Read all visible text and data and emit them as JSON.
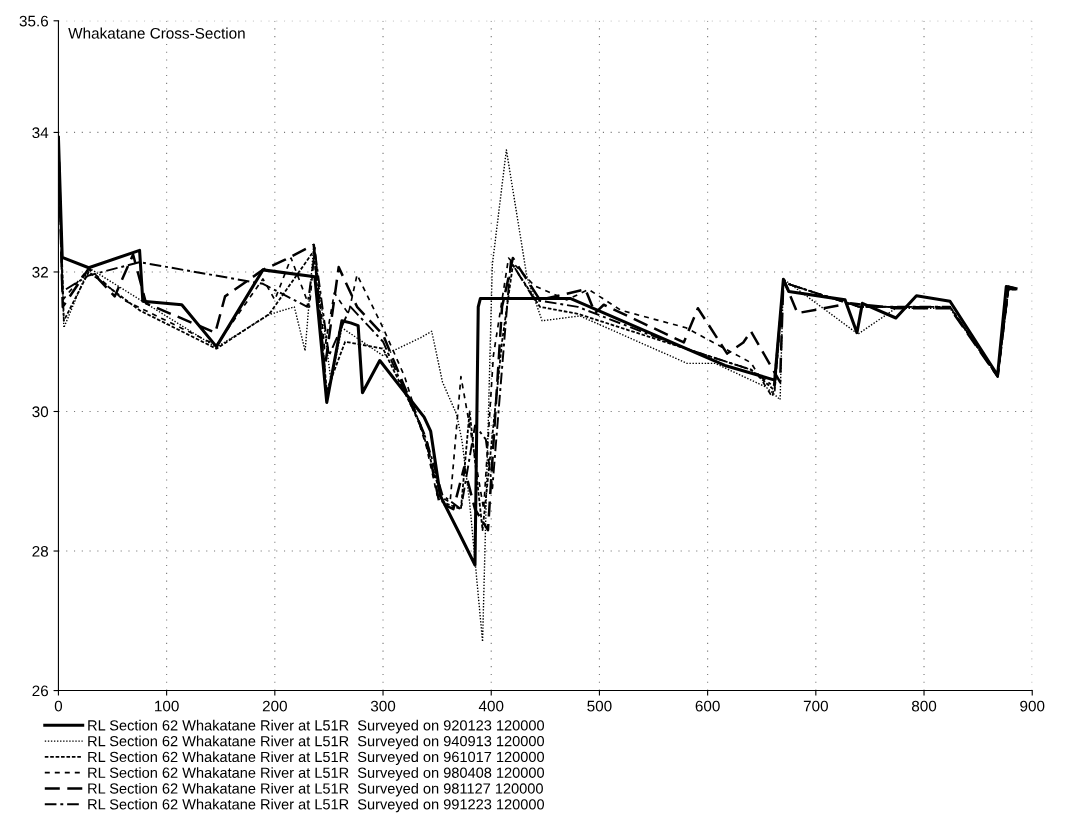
{
  "chart_data": {
    "type": "line",
    "title": "Whakatane Cross-Section",
    "xlim": [
      0,
      900
    ],
    "xticks": [
      0,
      100,
      200,
      300,
      400,
      500,
      600,
      700,
      800,
      900
    ],
    "ylim": [
      26,
      35.6
    ],
    "yticks": [
      26,
      28,
      30,
      32,
      34,
      35.6
    ],
    "grid": true,
    "legend": "bottom",
    "marker": "none",
    "series": [
      {
        "name": "RL Section 62 Whakatane River at L51R  Surveyed on 920123 120000",
        "color": "#000000",
        "line_style": "solid",
        "x": [
          0,
          3.5,
          28,
          75,
          78,
          114,
          146,
          189,
          237,
          248,
          262,
          270,
          277,
          281,
          297,
          338,
          344,
          353,
          370,
          385,
          388,
          390,
          473,
          616,
          662,
          670,
          675,
          727,
          738,
          743,
          774,
          793,
          824,
          868,
          876,
          885
        ],
        "values": [
          33.93,
          32.21,
          32.06,
          32.31,
          31.58,
          31.53,
          30.93,
          32.03,
          31.93,
          30.13,
          31.3,
          31.27,
          31.23,
          30.27,
          30.73,
          29.92,
          29.72,
          28.79,
          28.27,
          27.8,
          31.5,
          31.62,
          31.62,
          30.66,
          30.45,
          31.89,
          31.72,
          31.6,
          31.13,
          31.55,
          31.34,
          31.66,
          31.58,
          30.52,
          31.79,
          31.76
        ]
      },
      {
        "name": "RL Section 62 Whakatane River at L51R  Surveyed on 940913 120000",
        "color": "#000000",
        "line_style": "dotted",
        "x": [
          0,
          5,
          28,
          146,
          195,
          218,
          228,
          236,
          252,
          262,
          300,
          335,
          345,
          355,
          368,
          373,
          380,
          392,
          401,
          414,
          433,
          447,
          482,
          581,
          607,
          654,
          667,
          670,
          739,
          774,
          824,
          868,
          878,
          885
        ],
        "values": [
          33.9,
          31.2,
          32.06,
          30.92,
          31.39,
          31.5,
          30.87,
          32.39,
          30.42,
          31.2,
          30.8,
          31.06,
          31.15,
          30.42,
          29.96,
          29.58,
          28.7,
          26.7,
          32.1,
          33.75,
          31.93,
          31.3,
          31.37,
          30.69,
          30.69,
          30.35,
          30.17,
          31.9,
          31.11,
          31.48,
          31.48,
          30.5,
          31.78,
          31.75
        ]
      },
      {
        "name": "RL Section 62 Whakatane River at L51R  Surveyed on 961017 120000",
        "color": "#000000",
        "line_style": "dotted",
        "x": [
          0,
          5,
          28,
          75,
          146,
          195,
          236,
          248,
          265,
          300,
          335,
          355,
          372,
          380,
          392,
          410,
          420,
          445,
          480,
          580,
          640,
          662,
          670,
          740,
          824,
          868,
          878,
          885
        ],
        "values": [
          33.9,
          31.3,
          32.0,
          31.45,
          30.9,
          31.4,
          32.3,
          30.3,
          31.0,
          30.9,
          29.8,
          28.7,
          28.6,
          30.0,
          28.3,
          31.0,
          32.1,
          31.5,
          31.4,
          30.9,
          30.6,
          30.3,
          31.85,
          31.5,
          31.5,
          30.5,
          31.75,
          31.75
        ]
      },
      {
        "name": "RL Section 62 Whakatane River at L51R  Surveyed on 980408 120000",
        "color": "#000000",
        "line_style": "dashed",
        "x": [
          0,
          4,
          28,
          60,
          100,
          146,
          189,
          200,
          215,
          232,
          237,
          246,
          255,
          268,
          276,
          300,
          320,
          340,
          350,
          362,
          372,
          380,
          393,
          402,
          416,
          440,
          470,
          490,
          520,
          580,
          640,
          660,
          670,
          740,
          824,
          868,
          878,
          885
        ],
        "values": [
          33.9,
          31.6,
          32.05,
          31.6,
          31.3,
          30.95,
          31.9,
          31.6,
          32.2,
          31.5,
          32.35,
          30.9,
          31.7,
          31.4,
          31.96,
          31.2,
          30.5,
          29.5,
          28.8,
          28.7,
          30.5,
          29.8,
          28.6,
          30.8,
          32.2,
          31.8,
          31.6,
          31.75,
          31.45,
          31.2,
          30.7,
          30.2,
          31.85,
          31.5,
          31.5,
          30.5,
          31.75,
          31.75
        ]
      },
      {
        "name": "RL Section 62 Whakatane River at L51R  Surveyed on 981127 120000",
        "color": "#000000",
        "line_style": "dashed",
        "x": [
          0,
          4,
          28,
          52,
          69,
          81,
          145,
          154,
          189,
          210,
          236,
          246,
          259,
          276,
          300,
          340,
          352,
          365,
          375,
          385,
          397,
          410,
          420,
          445,
          487,
          496,
          504,
          578,
          591,
          618,
          633,
          640,
          667,
          670,
          683,
          732,
          774,
          824,
          868,
          878,
          885
        ],
        "values": [
          33.9,
          31.5,
          32.05,
          31.65,
          32.25,
          31.55,
          31.13,
          31.65,
          32.03,
          32.18,
          32.39,
          30.6,
          32.07,
          31.5,
          31.1,
          29.6,
          28.7,
          28.6,
          29.2,
          28.6,
          28.3,
          31.5,
          32.2,
          31.6,
          31.75,
          31.41,
          31.53,
          30.99,
          31.48,
          30.83,
          30.99,
          31.15,
          30.42,
          31.9,
          31.41,
          31.55,
          31.48,
          31.48,
          30.5,
          31.79,
          31.76
        ]
      },
      {
        "name": "RL Section 62 Whakatane River at L51R  Surveyed on 991223 120000",
        "color": "#000000",
        "line_style": "dashdot",
        "x": [
          0,
          3.5,
          28,
          75,
          189,
          230,
          237,
          250,
          270,
          300,
          340,
          355,
          372,
          385,
          395,
          401,
          412,
          418,
          440,
          480,
          580,
          640,
          662,
          670,
          740,
          824,
          868,
          878,
          885
        ],
        "values": [
          33.9,
          31.72,
          31.95,
          32.14,
          31.83,
          31.5,
          32.3,
          30.8,
          31.5,
          31.0,
          29.6,
          28.8,
          28.6,
          29.8,
          29.6,
          28.9,
          31.0,
          32.15,
          31.6,
          31.5,
          30.9,
          30.6,
          30.35,
          31.85,
          31.5,
          31.5,
          30.5,
          31.75,
          31.75
        ]
      }
    ]
  }
}
